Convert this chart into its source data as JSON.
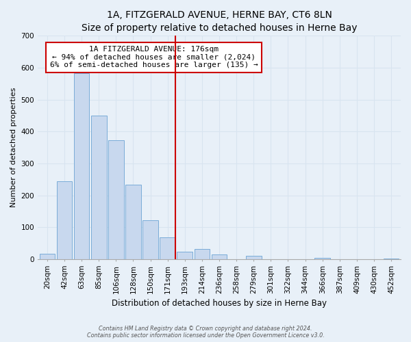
{
  "title": "1A, FITZGERALD AVENUE, HERNE BAY, CT6 8LN",
  "subtitle": "Size of property relative to detached houses in Herne Bay",
  "xlabel": "Distribution of detached houses by size in Herne Bay",
  "ylabel": "Number of detached properties",
  "bar_labels": [
    "20sqm",
    "42sqm",
    "63sqm",
    "85sqm",
    "106sqm",
    "128sqm",
    "150sqm",
    "171sqm",
    "193sqm",
    "214sqm",
    "236sqm",
    "258sqm",
    "279sqm",
    "301sqm",
    "322sqm",
    "344sqm",
    "366sqm",
    "387sqm",
    "409sqm",
    "430sqm",
    "452sqm"
  ],
  "bar_values": [
    18,
    245,
    583,
    450,
    372,
    233,
    121,
    68,
    23,
    31,
    14,
    0,
    10,
    0,
    0,
    0,
    5,
    0,
    0,
    0,
    2
  ],
  "bar_color": "#c8d8ee",
  "bar_edge_color": "#7aacd8",
  "vline_x_index": 7,
  "vline_color": "#cc0000",
  "annotation_title": "1A FITZGERALD AVENUE: 176sqm",
  "annotation_line1": "← 94% of detached houses are smaller (2,024)",
  "annotation_line2": "6% of semi-detached houses are larger (135) →",
  "annotation_box_facecolor": "#ffffff",
  "annotation_box_edgecolor": "#cc0000",
  "ylim": [
    0,
    700
  ],
  "yticks": [
    0,
    100,
    200,
    300,
    400,
    500,
    600,
    700
  ],
  "grid_color": "#d8e4f0",
  "bg_color": "#e8f0f8",
  "plot_bg_color": "#e8f0f8",
  "title_fontsize": 10,
  "subtitle_fontsize": 9,
  "ylabel_fontsize": 8,
  "xlabel_fontsize": 8.5,
  "tick_fontsize": 7.5,
  "footnote1": "Contains HM Land Registry data © Crown copyright and database right 2024.",
  "footnote2": "Contains public sector information licensed under the Open Government Licence v3.0."
}
